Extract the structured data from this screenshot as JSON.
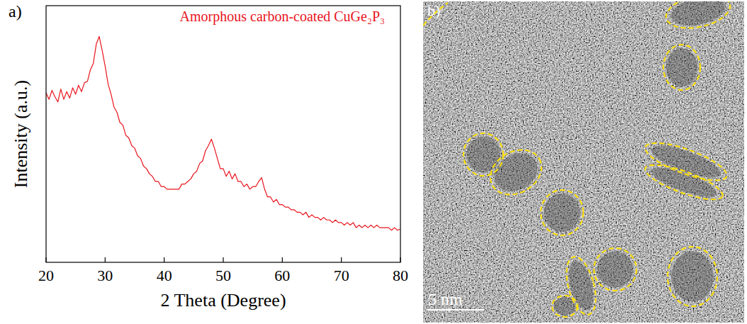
{
  "chart_data": {
    "type": "line",
    "panel_label": "a)",
    "x_label": "2 Theta (Degree)",
    "y_label": "Intensity (a.u.)",
    "xlim": [
      20,
      80
    ],
    "xticks": [
      20,
      30,
      40,
      50,
      60,
      70,
      80
    ],
    "ylim": [
      0,
      100
    ],
    "yticks": [],
    "tick_labels": "x",
    "grid": false,
    "legend": "upper right",
    "x": [
      20,
      20.5,
      21,
      21.5,
      22,
      22.5,
      23,
      23.5,
      24,
      24.5,
      25,
      25.5,
      26,
      26.5,
      27,
      27.5,
      28,
      28.5,
      29,
      29.5,
      30,
      30.5,
      31,
      31.5,
      32,
      32.5,
      33,
      33.5,
      34,
      34.5,
      35,
      35.5,
      36,
      36.5,
      37,
      37.5,
      38,
      38.5,
      39,
      39.5,
      40,
      40.5,
      41,
      41.5,
      42,
      42.5,
      43,
      43.5,
      44,
      44.5,
      45,
      45.5,
      46,
      46.5,
      47,
      47.5,
      48,
      48.5,
      49,
      49.5,
      50,
      50.5,
      51,
      51.5,
      52,
      52.5,
      53,
      53.5,
      54,
      54.5,
      55,
      55.5,
      56,
      56.5,
      57,
      57.5,
      58,
      58.5,
      59,
      59.5,
      60,
      60.5,
      61,
      61.5,
      62,
      62.5,
      63,
      63.5,
      64,
      64.5,
      65,
      65.5,
      66,
      66.5,
      67,
      67.5,
      68,
      68.5,
      69,
      69.5,
      70,
      70.5,
      71,
      71.5,
      72,
      72.5,
      73,
      73.5,
      74,
      74.5,
      75,
      75.5,
      76,
      76.5,
      77,
      77.5,
      78,
      78.5,
      79,
      79.5,
      80
    ],
    "series": [
      {
        "name": "Amorphous carbon-coated CuGe₂P₃",
        "color": "#e8141c",
        "values": [
          66,
          63.5,
          67,
          64.5,
          62.5,
          67.5,
          63.5,
          66.5,
          64,
          68,
          65.5,
          69,
          66.5,
          70,
          70.5,
          75,
          77.5,
          85,
          88,
          82.5,
          76.5,
          69.5,
          65.5,
          60.5,
          58.5,
          54.5,
          53.5,
          49.5,
          48.5,
          45.5,
          44.5,
          41.5,
          40.5,
          37.5,
          36.5,
          34.5,
          33.5,
          31.5,
          31.5,
          29.5,
          29.5,
          28.5,
          28.5,
          28.5,
          28.5,
          28.5,
          30.5,
          30.5,
          31.5,
          32.5,
          34.5,
          35.5,
          38.5,
          39.5,
          43.5,
          45.5,
          48,
          44.5,
          40.5,
          36.5,
          36.5,
          33.5,
          35.5,
          32.5,
          34.5,
          31.5,
          31.5,
          29.5,
          30.5,
          28.5,
          29.5,
          29.5,
          31.5,
          33,
          28.5,
          25.5,
          25.5,
          23.5,
          24.5,
          22.5,
          22.5,
          21.5,
          21.5,
          20.5,
          20.5,
          19.5,
          19.5,
          18.5,
          19.5,
          17.5,
          18.5,
          17.5,
          17.5,
          16.5,
          17.5,
          16.5,
          16.5,
          15.5,
          16.5,
          15.5,
          15.5,
          14.5,
          15.5,
          14.5,
          15.5,
          13.5,
          14.5,
          13.5,
          14.5,
          13.5,
          14.5,
          13.5,
          14.5,
          13.5,
          13.5,
          13.5,
          13.5,
          12.5,
          13.5,
          12.5,
          13
        ]
      }
    ]
  },
  "image": {
    "label": "b)",
    "scale_bar": "5 nm"
  }
}
